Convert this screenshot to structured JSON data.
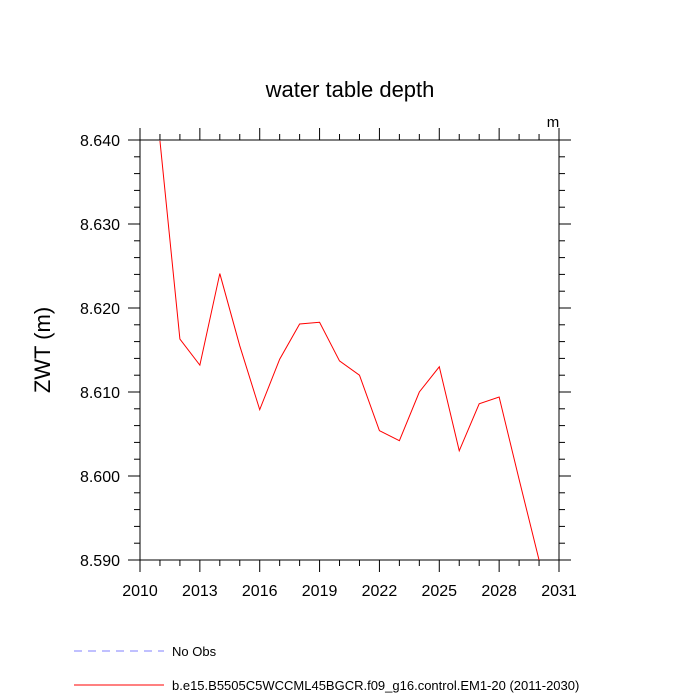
{
  "chart_data": {
    "type": "line",
    "title": "water table depth",
    "ylabel": "ZWT  (m)",
    "units_label": "m",
    "xlim": [
      2010,
      2031
    ],
    "ylim": [
      8.59,
      8.64
    ],
    "x_ticks": [
      2010,
      2013,
      2016,
      2019,
      2022,
      2025,
      2028,
      2031
    ],
    "x_tick_labels": [
      "2010",
      "2013",
      "2016",
      "2019",
      "2022",
      "2025",
      "2028",
      "2031"
    ],
    "y_ticks": [
      8.59,
      8.6,
      8.61,
      8.62,
      8.63,
      8.64
    ],
    "y_tick_labels": [
      "8.590",
      "8.600",
      "8.610",
      "8.620",
      "8.630",
      "8.640"
    ],
    "series": [
      {
        "name": "b.e15.B5505C5WCCML45BGCR.f09_g16.control.EM1-20 (2011-2030)",
        "color": "#ff0000",
        "x": [
          2011,
          2012,
          2013,
          2014,
          2015,
          2016,
          2017,
          2018,
          2019,
          2020,
          2021,
          2022,
          2023,
          2024,
          2025,
          2026,
          2027,
          2028,
          2029,
          2030
        ],
        "values": [
          8.6399,
          8.6163,
          8.6132,
          8.6241,
          8.6155,
          8.6079,
          8.6139,
          8.6181,
          8.6183,
          8.6137,
          8.612,
          8.6054,
          8.6042,
          8.61,
          8.613,
          8.603,
          8.6086,
          8.6094,
          8.5996,
          8.59
        ]
      }
    ],
    "legend": [
      {
        "label": "No Obs",
        "color": "#8080ff",
        "style": "dashed"
      },
      {
        "label": "b.e15.B5505C5WCCML45BGCR.f09_g16.control.EM1-20 (2011-2030)",
        "color": "#ff0000",
        "style": "solid"
      }
    ],
    "legend_position": "bottom-left"
  }
}
